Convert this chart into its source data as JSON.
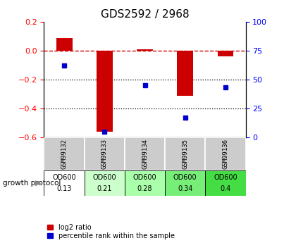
{
  "title": "GDS2592 / 2968",
  "samples": [
    "GSM99132",
    "GSM99133",
    "GSM99134",
    "GSM99135",
    "GSM99136"
  ],
  "log2_ratio": [
    0.09,
    -0.56,
    0.01,
    -0.31,
    -0.04
  ],
  "percentile_rank": [
    62,
    5,
    45,
    17,
    43
  ],
  "left_ylim": [
    -0.6,
    0.2
  ],
  "right_ylim": [
    0,
    100
  ],
  "left_yticks": [
    -0.6,
    -0.4,
    -0.2,
    0.0,
    0.2
  ],
  "right_yticks": [
    0,
    25,
    50,
    75,
    100
  ],
  "bar_color": "#cc0000",
  "dot_color": "#0000cc",
  "dashed_line_color": "#cc0000",
  "dotted_line_color": "#000000",
  "growth_protocol_label": "growth protocol",
  "protocol_names": [
    "OD600",
    "OD600",
    "OD600",
    "OD600",
    "OD600"
  ],
  "protocol_values": [
    "0.13",
    "0.21",
    "0.28",
    "0.34",
    "0.4"
  ],
  "protocol_colors": [
    "#ffffff",
    "#ccffcc",
    "#aaffaa",
    "#77ee77",
    "#44dd44"
  ],
  "sample_bg_color": "#cccccc",
  "legend_red_label": "log2 ratio",
  "legend_blue_label": "percentile rank within the sample"
}
